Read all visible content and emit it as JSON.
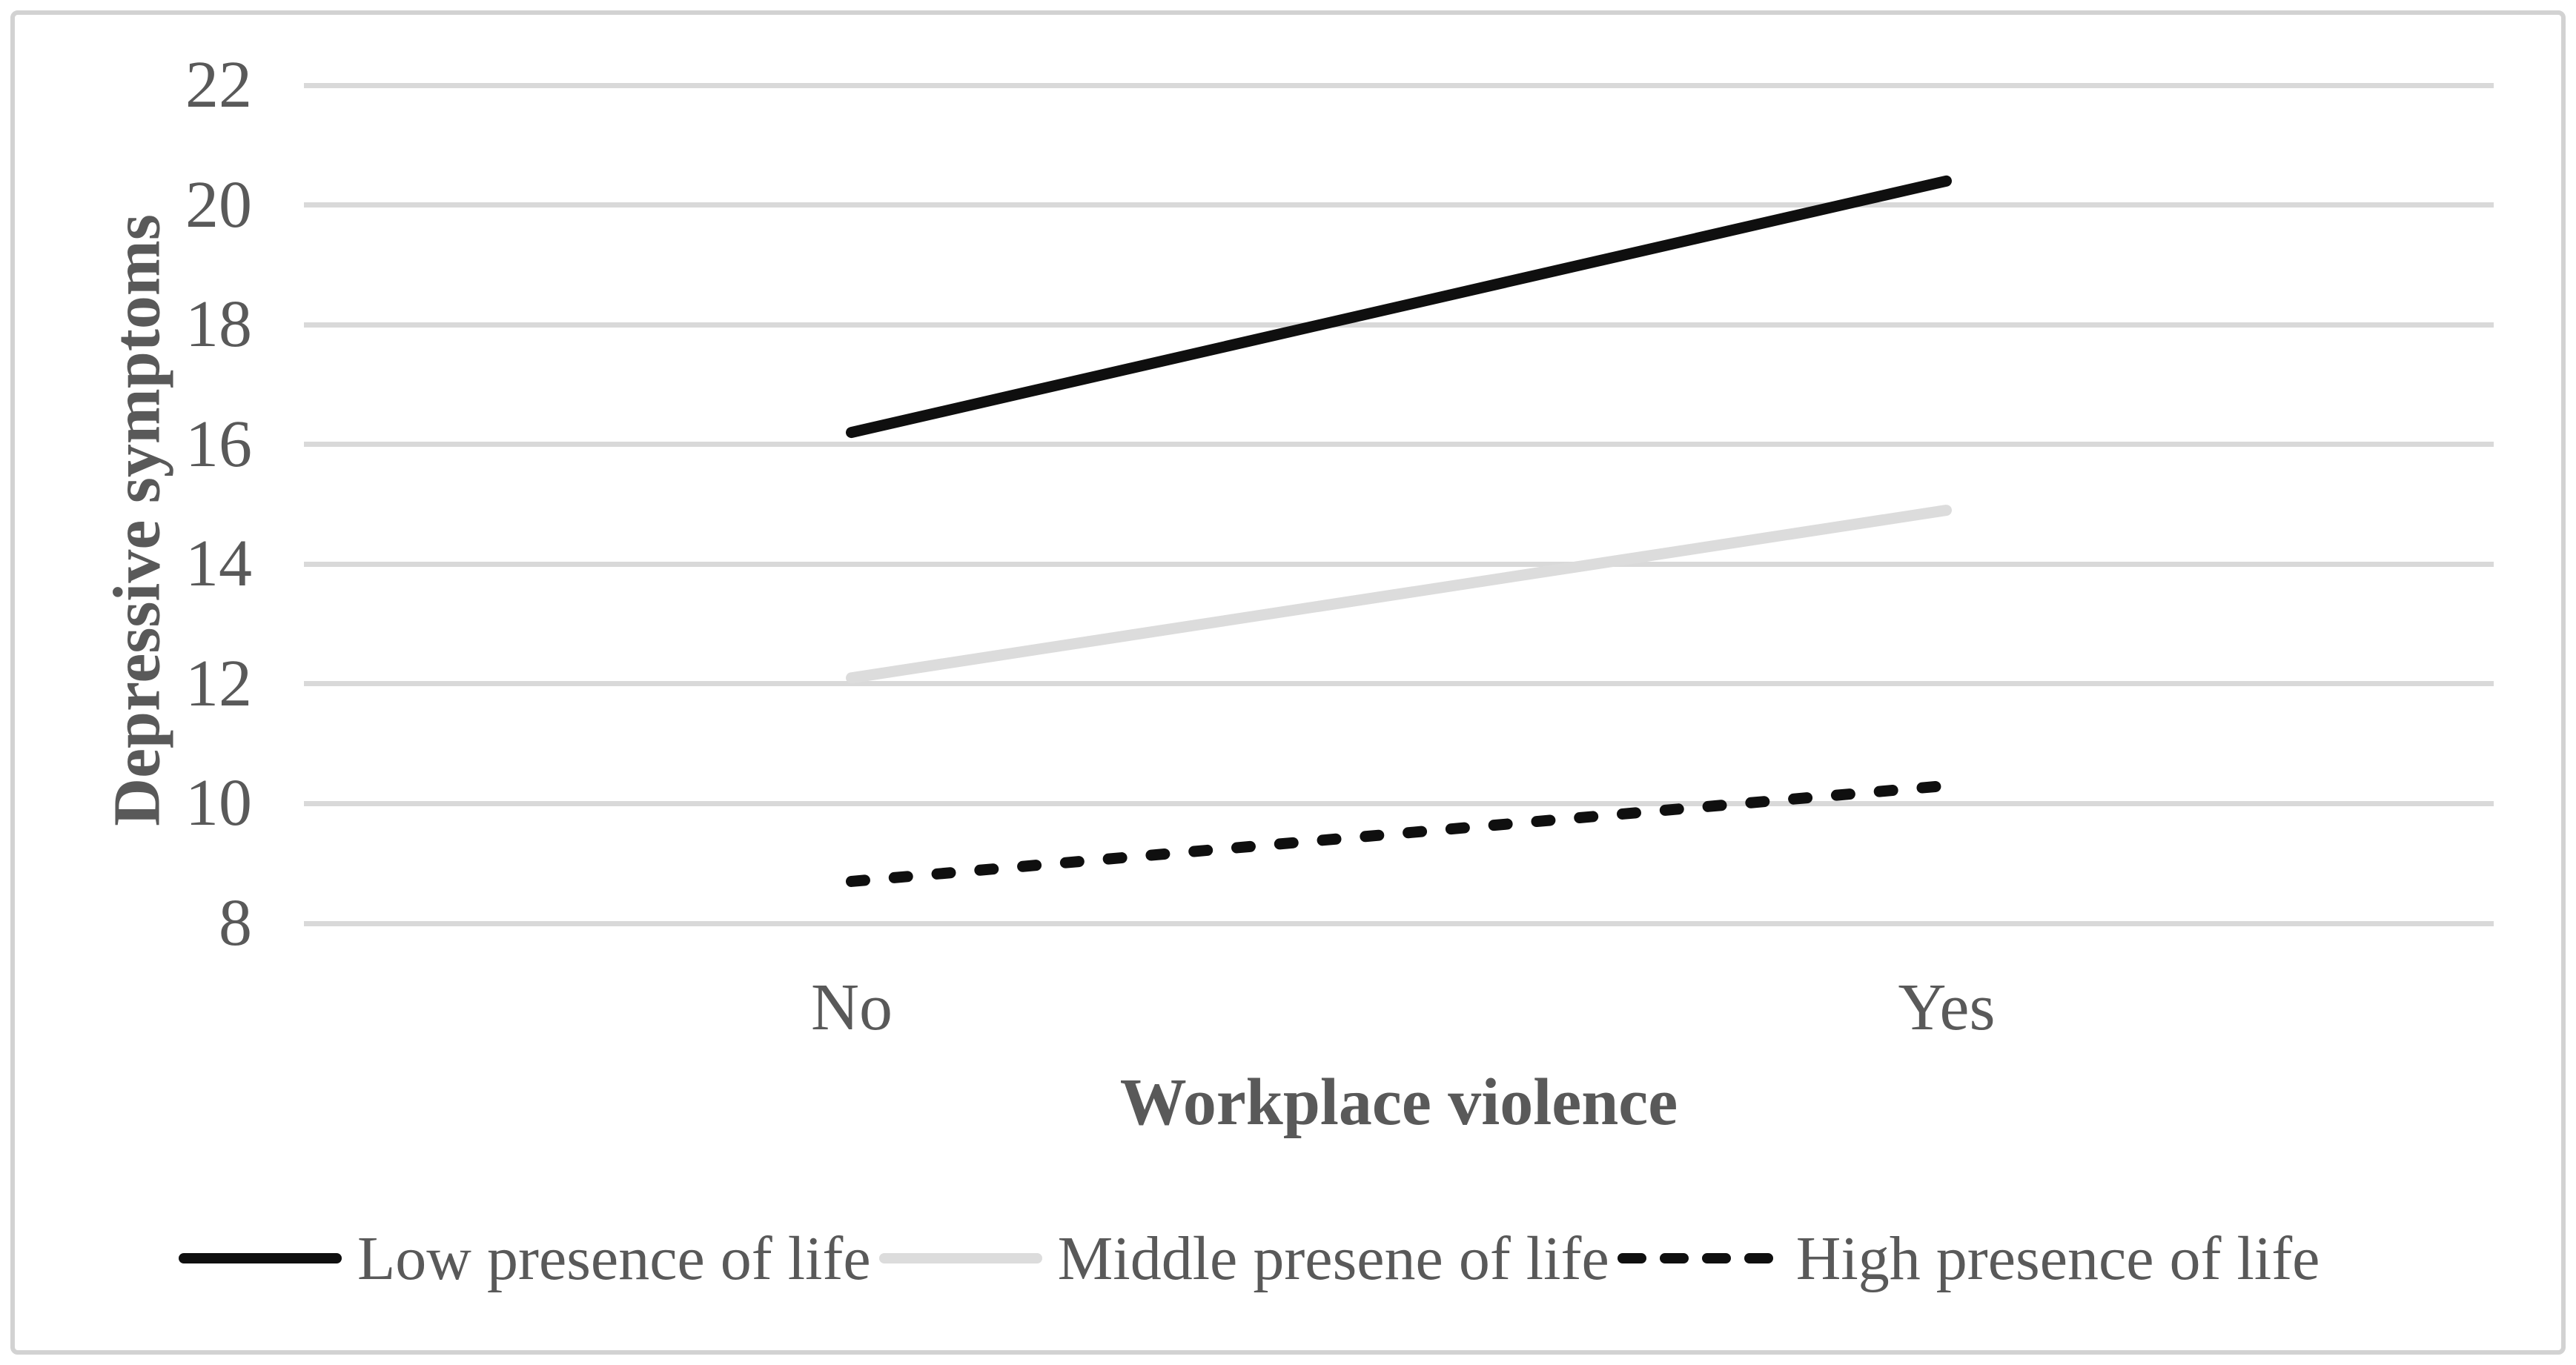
{
  "chart_data": {
    "type": "line",
    "categories": [
      "No",
      "Yes"
    ],
    "series": [
      {
        "name": "Low presence of life",
        "values": [
          16.2,
          20.4
        ],
        "color": "#0f0f0f",
        "style": "solid"
      },
      {
        "name": "Middle presene of life",
        "values": [
          12.1,
          14.9
        ],
        "color": "#dcdcdc",
        "style": "solid"
      },
      {
        "name": "High presence of life",
        "values": [
          8.7,
          10.3
        ],
        "color": "#0f0f0f",
        "style": "dashed"
      }
    ],
    "title": "",
    "xlabel": "Workplace violence",
    "ylabel": "Depressive symptoms",
    "ylim": [
      8,
      22
    ],
    "yticks": [
      22,
      20,
      18,
      16,
      14,
      12,
      10,
      8
    ],
    "grid": true,
    "legend_position": "bottom",
    "colors": {
      "text": "#595959",
      "gridline": "#d9d9d9",
      "frame_border": "#d2d2d2",
      "background": "#ffffff"
    }
  }
}
